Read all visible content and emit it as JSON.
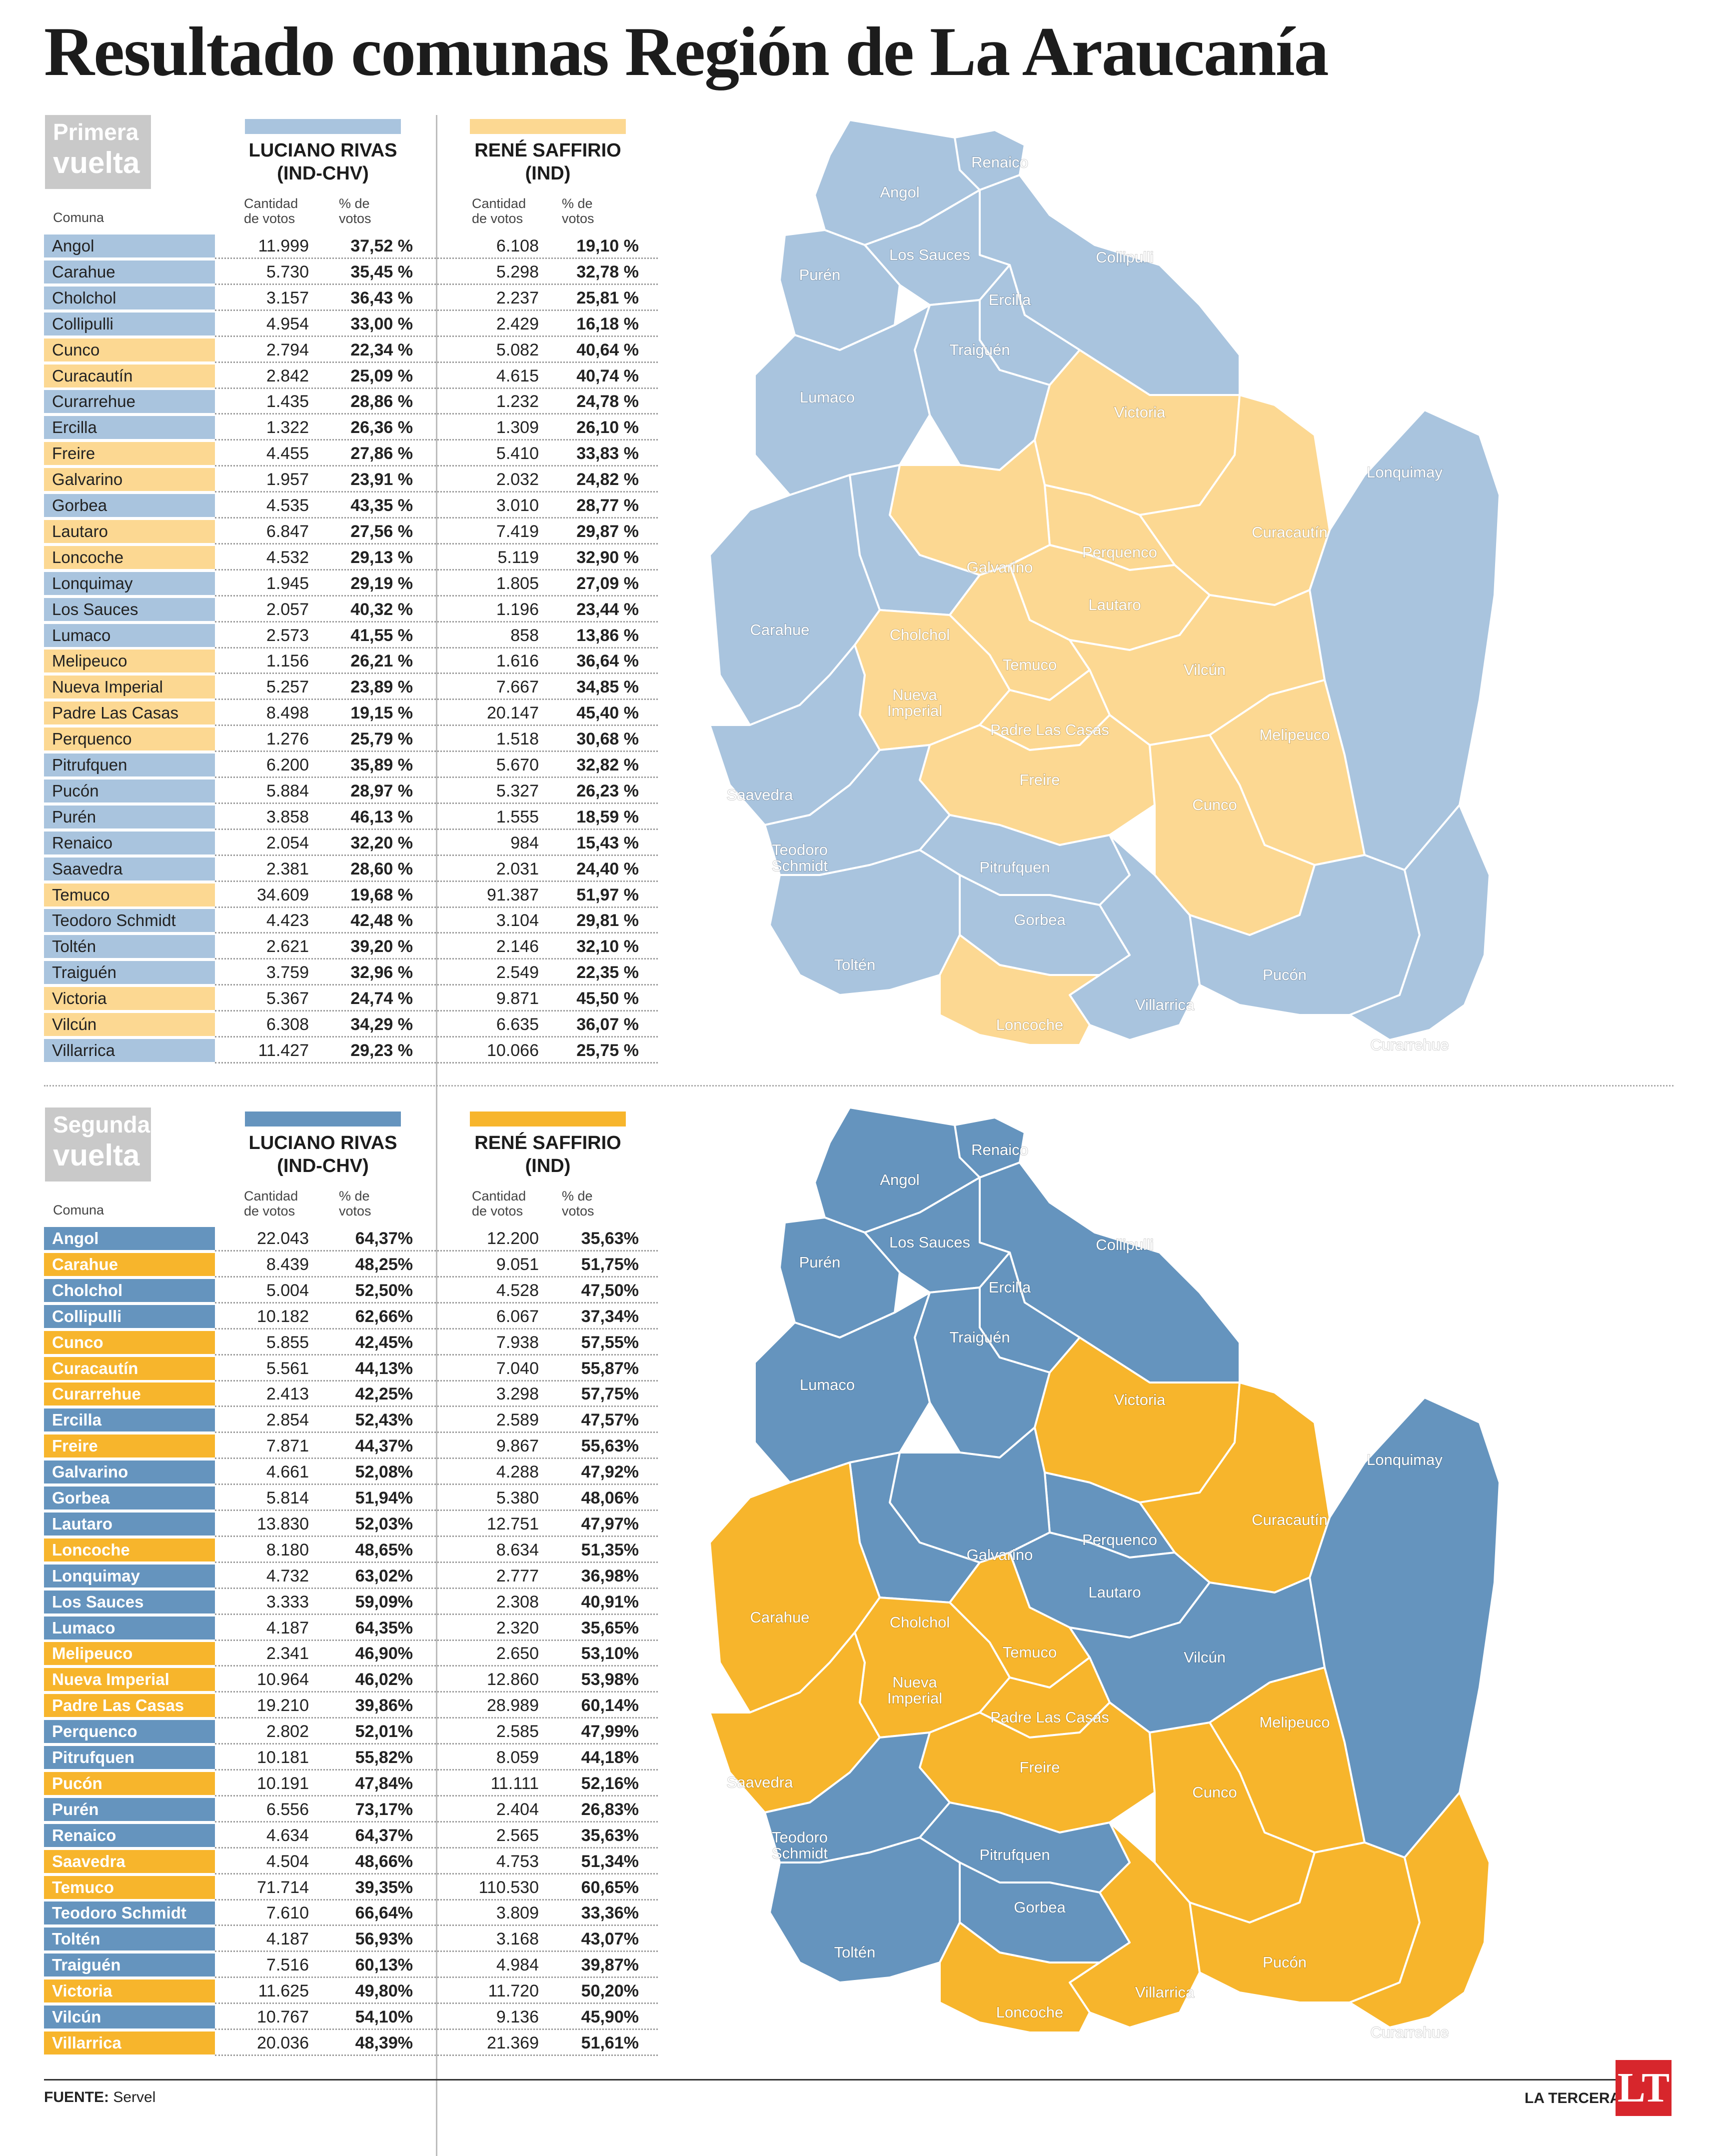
{
  "title": "Resultado comunas Región de La Araucanía",
  "colors": {
    "rivas_r1": "#a9c4de",
    "saffirio_r1": "#fcd892",
    "rivas_r2": "#6594be",
    "saffirio_r2": "#f7b52c",
    "border": "#ffffff",
    "label_gray": "#c9c9c9"
  },
  "footer": {
    "source_label": "FUENTE:",
    "source_value": "Servel",
    "brand": "LA TERCERA",
    "logo": "LT"
  },
  "rounds": [
    {
      "label_line1": "Primera",
      "label_line2": "vuelta",
      "candidates": [
        {
          "name": "LUCIANO RIVAS",
          "party": "(IND-CHV)"
        },
        {
          "name": "RENÉ SAFFIRIO",
          "party": "(IND)"
        }
      ],
      "headers": {
        "comuna": "Comuna",
        "cantidad_1": "Cantidad",
        "cantidad_2": "de votos",
        "pct_1": "% de",
        "pct_2": "votos"
      },
      "rows": [
        {
          "comuna": "Angol",
          "r_votes": "11.999",
          "r_pct": "37,52 %",
          "s_votes": "6.108",
          "s_pct": "19,10 %",
          "winner": "rivas"
        },
        {
          "comuna": "Carahue",
          "r_votes": "5.730",
          "r_pct": "35,45 %",
          "s_votes": "5.298",
          "s_pct": "32,78 %",
          "winner": "rivas"
        },
        {
          "comuna": "Cholchol",
          "r_votes": "3.157",
          "r_pct": "36,43 %",
          "s_votes": "2.237",
          "s_pct": "25,81 %",
          "winner": "rivas"
        },
        {
          "comuna": "Collipulli",
          "r_votes": "4.954",
          "r_pct": "33,00 %",
          "s_votes": "2.429",
          "s_pct": "16,18 %",
          "winner": "rivas"
        },
        {
          "comuna": "Cunco",
          "r_votes": "2.794",
          "r_pct": "22,34 %",
          "s_votes": "5.082",
          "s_pct": "40,64 %",
          "winner": "saffirio"
        },
        {
          "comuna": "Curacautín",
          "r_votes": "2.842",
          "r_pct": "25,09 %",
          "s_votes": "4.615",
          "s_pct": "40,74 %",
          "winner": "saffirio"
        },
        {
          "comuna": "Curarrehue",
          "r_votes": "1.435",
          "r_pct": "28,86 %",
          "s_votes": "1.232",
          "s_pct": "24,78 %",
          "winner": "rivas"
        },
        {
          "comuna": "Ercilla",
          "r_votes": "1.322",
          "r_pct": "26,36 %",
          "s_votes": "1.309",
          "s_pct": "26,10 %",
          "winner": "rivas"
        },
        {
          "comuna": "Freire",
          "r_votes": "4.455",
          "r_pct": "27,86 %",
          "s_votes": "5.410",
          "s_pct": "33,83 %",
          "winner": "saffirio"
        },
        {
          "comuna": "Galvarino",
          "r_votes": "1.957",
          "r_pct": "23,91 %",
          "s_votes": "2.032",
          "s_pct": "24,82 %",
          "winner": "saffirio"
        },
        {
          "comuna": "Gorbea",
          "r_votes": "4.535",
          "r_pct": "43,35 %",
          "s_votes": "3.010",
          "s_pct": "28,77 %",
          "winner": "rivas"
        },
        {
          "comuna": "Lautaro",
          "r_votes": "6.847",
          "r_pct": "27,56 %",
          "s_votes": "7.419",
          "s_pct": "29,87 %",
          "winner": "saffirio"
        },
        {
          "comuna": "Loncoche",
          "r_votes": "4.532",
          "r_pct": "29,13 %",
          "s_votes": "5.119",
          "s_pct": "32,90 %",
          "winner": "saffirio"
        },
        {
          "comuna": "Lonquimay",
          "r_votes": "1.945",
          "r_pct": "29,19 %",
          "s_votes": "1.805",
          "s_pct": "27,09 %",
          "winner": "rivas"
        },
        {
          "comuna": "Los Sauces",
          "r_votes": "2.057",
          "r_pct": "40,32 %",
          "s_votes": "1.196",
          "s_pct": "23,44 %",
          "winner": "rivas"
        },
        {
          "comuna": "Lumaco",
          "r_votes": "2.573",
          "r_pct": "41,55 %",
          "s_votes": "858",
          "s_pct": "13,86 %",
          "winner": "rivas"
        },
        {
          "comuna": "Melipeuco",
          "r_votes": "1.156",
          "r_pct": "26,21 %",
          "s_votes": "1.616",
          "s_pct": "36,64 %",
          "winner": "saffirio"
        },
        {
          "comuna": "Nueva Imperial",
          "r_votes": "5.257",
          "r_pct": "23,89 %",
          "s_votes": "7.667",
          "s_pct": "34,85 %",
          "winner": "saffirio"
        },
        {
          "comuna": "Padre Las Casas",
          "r_votes": "8.498",
          "r_pct": "19,15 %",
          "s_votes": "20.147",
          "s_pct": "45,40 %",
          "winner": "saffirio"
        },
        {
          "comuna": "Perquenco",
          "r_votes": "1.276",
          "r_pct": "25,79 %",
          "s_votes": "1.518",
          "s_pct": "30,68 %",
          "winner": "saffirio"
        },
        {
          "comuna": "Pitrufquen",
          "r_votes": "6.200",
          "r_pct": "35,89 %",
          "s_votes": "5.670",
          "s_pct": "32,82 %",
          "winner": "rivas"
        },
        {
          "comuna": "Pucón",
          "r_votes": "5.884",
          "r_pct": "28,97 %",
          "s_votes": "5.327",
          "s_pct": "26,23 %",
          "winner": "rivas"
        },
        {
          "comuna": "Purén",
          "r_votes": "3.858",
          "r_pct": "46,13 %",
          "s_votes": "1.555",
          "s_pct": "18,59 %",
          "winner": "rivas"
        },
        {
          "comuna": "Renaico",
          "r_votes": "2.054",
          "r_pct": "32,20 %",
          "s_votes": "984",
          "s_pct": "15,43 %",
          "winner": "rivas"
        },
        {
          "comuna": "Saavedra",
          "r_votes": "2.381",
          "r_pct": "28,60 %",
          "s_votes": "2.031",
          "s_pct": "24,40 %",
          "winner": "rivas"
        },
        {
          "comuna": "Temuco",
          "r_votes": "34.609",
          "r_pct": "19,68 %",
          "s_votes": "91.387",
          "s_pct": "51,97 %",
          "winner": "saffirio"
        },
        {
          "comuna": "Teodoro Schmidt",
          "r_votes": "4.423",
          "r_pct": "42,48 %",
          "s_votes": "3.104",
          "s_pct": "29,81 %",
          "winner": "rivas"
        },
        {
          "comuna": "Toltén",
          "r_votes": "2.621",
          "r_pct": "39,20 %",
          "s_votes": "2.146",
          "s_pct": "32,10 %",
          "winner": "rivas"
        },
        {
          "comuna": "Traiguén",
          "r_votes": "3.759",
          "r_pct": "32,96 %",
          "s_votes": "2.549",
          "s_pct": "22,35 %",
          "winner": "rivas"
        },
        {
          "comuna": "Victoria",
          "r_votes": "5.367",
          "r_pct": "24,74 %",
          "s_votes": "9.871",
          "s_pct": "45,50 %",
          "winner": "saffirio"
        },
        {
          "comuna": "Vilcún",
          "r_votes": "6.308",
          "r_pct": "34,29 %",
          "s_votes": "6.635",
          "s_pct": "36,07 %",
          "winner": "saffirio"
        },
        {
          "comuna": "Villarrica",
          "r_votes": "11.427",
          "r_pct": "29,23 %",
          "s_votes": "10.066",
          "s_pct": "25,75 %",
          "winner": "rivas"
        }
      ]
    },
    {
      "label_line1": "Segunda",
      "label_line2": "vuelta",
      "candidates": [
        {
          "name": "LUCIANO RIVAS",
          "party": "(IND-CHV)"
        },
        {
          "name": "RENÉ SAFFIRIO",
          "party": "(IND)"
        }
      ],
      "headers": {
        "comuna": "Comuna",
        "cantidad_1": "Cantidad",
        "cantidad_2": "de votos",
        "pct_1": "% de",
        "pct_2": "votos"
      },
      "rows": [
        {
          "comuna": "Angol",
          "r_votes": "22.043",
          "r_pct": "64,37%",
          "s_votes": "12.200",
          "s_pct": "35,63%",
          "winner": "rivas"
        },
        {
          "comuna": "Carahue",
          "r_votes": "8.439",
          "r_pct": "48,25%",
          "s_votes": "9.051",
          "s_pct": "51,75%",
          "winner": "saffirio"
        },
        {
          "comuna": "Cholchol",
          "r_votes": "5.004",
          "r_pct": "52,50%",
          "s_votes": "4.528",
          "s_pct": "47,50%",
          "winner": "rivas"
        },
        {
          "comuna": "Collipulli",
          "r_votes": "10.182",
          "r_pct": "62,66%",
          "s_votes": "6.067",
          "s_pct": "37,34%",
          "winner": "rivas"
        },
        {
          "comuna": "Cunco",
          "r_votes": "5.855",
          "r_pct": "42,45%",
          "s_votes": "7.938",
          "s_pct": "57,55%",
          "winner": "saffirio"
        },
        {
          "comuna": "Curacautín",
          "r_votes": "5.561",
          "r_pct": "44,13%",
          "s_votes": "7.040",
          "s_pct": "55,87%",
          "winner": "saffirio"
        },
        {
          "comuna": "Curarrehue",
          "r_votes": "2.413",
          "r_pct": "42,25%",
          "s_votes": "3.298",
          "s_pct": "57,75%",
          "winner": "saffirio"
        },
        {
          "comuna": "Ercilla",
          "r_votes": "2.854",
          "r_pct": "52,43%",
          "s_votes": "2.589",
          "s_pct": "47,57%",
          "winner": "rivas"
        },
        {
          "comuna": "Freire",
          "r_votes": "7.871",
          "r_pct": "44,37%",
          "s_votes": "9.867",
          "s_pct": "55,63%",
          "winner": "saffirio"
        },
        {
          "comuna": "Galvarino",
          "r_votes": "4.661",
          "r_pct": "52,08%",
          "s_votes": "4.288",
          "s_pct": "47,92%",
          "winner": "rivas"
        },
        {
          "comuna": "Gorbea",
          "r_votes": "5.814",
          "r_pct": "51,94%",
          "s_votes": "5.380",
          "s_pct": "48,06%",
          "winner": "rivas"
        },
        {
          "comuna": "Lautaro",
          "r_votes": "13.830",
          "r_pct": "52,03%",
          "s_votes": "12.751",
          "s_pct": "47,97%",
          "winner": "rivas"
        },
        {
          "comuna": "Loncoche",
          "r_votes": "8.180",
          "r_pct": "48,65%",
          "s_votes": "8.634",
          "s_pct": "51,35%",
          "winner": "saffirio"
        },
        {
          "comuna": "Lonquimay",
          "r_votes": "4.732",
          "r_pct": "63,02%",
          "s_votes": "2.777",
          "s_pct": "36,98%",
          "winner": "rivas"
        },
        {
          "comuna": "Los Sauces",
          "r_votes": "3.333",
          "r_pct": "59,09%",
          "s_votes": "2.308",
          "s_pct": "40,91%",
          "winner": "rivas"
        },
        {
          "comuna": "Lumaco",
          "r_votes": "4.187",
          "r_pct": "64,35%",
          "s_votes": "2.320",
          "s_pct": "35,65%",
          "winner": "rivas"
        },
        {
          "comuna": "Melipeuco",
          "r_votes": "2.341",
          "r_pct": "46,90%",
          "s_votes": "2.650",
          "s_pct": "53,10%",
          "winner": "saffirio"
        },
        {
          "comuna": "Nueva Imperial",
          "r_votes": "10.964",
          "r_pct": "46,02%",
          "s_votes": "12.860",
          "s_pct": "53,98%",
          "winner": "saffirio"
        },
        {
          "comuna": "Padre Las Casas",
          "r_votes": "19.210",
          "r_pct": "39,86%",
          "s_votes": "28.989",
          "s_pct": "60,14%",
          "winner": "saffirio"
        },
        {
          "comuna": "Perquenco",
          "r_votes": "2.802",
          "r_pct": "52,01%",
          "s_votes": "2.585",
          "s_pct": "47,99%",
          "winner": "rivas"
        },
        {
          "comuna": "Pitrufquen",
          "r_votes": "10.181",
          "r_pct": "55,82%",
          "s_votes": "8.059",
          "s_pct": "44,18%",
          "winner": "rivas"
        },
        {
          "comuna": "Pucón",
          "r_votes": "10.191",
          "r_pct": "47,84%",
          "s_votes": "11.111",
          "s_pct": "52,16%",
          "winner": "saffirio"
        },
        {
          "comuna": "Purén",
          "r_votes": "6.556",
          "r_pct": "73,17%",
          "s_votes": "2.404",
          "s_pct": "26,83%",
          "winner": "rivas"
        },
        {
          "comuna": "Renaico",
          "r_votes": "4.634",
          "r_pct": "64,37%",
          "s_votes": "2.565",
          "s_pct": "35,63%",
          "winner": "rivas"
        },
        {
          "comuna": "Saavedra",
          "r_votes": "4.504",
          "r_pct": "48,66%",
          "s_votes": "4.753",
          "s_pct": "51,34%",
          "winner": "saffirio"
        },
        {
          "comuna": "Temuco",
          "r_votes": "71.714",
          "r_pct": "39,35%",
          "s_votes": "110.530",
          "s_pct": "60,65%",
          "winner": "saffirio"
        },
        {
          "comuna": "Teodoro Schmidt",
          "r_votes": "7.610",
          "r_pct": "66,64%",
          "s_votes": "3.809",
          "s_pct": "33,36%",
          "winner": "rivas"
        },
        {
          "comuna": "Toltén",
          "r_votes": "4.187",
          "r_pct": "56,93%",
          "s_votes": "3.168",
          "s_pct": "43,07%",
          "winner": "rivas"
        },
        {
          "comuna": "Traiguén",
          "r_votes": "7.516",
          "r_pct": "60,13%",
          "s_votes": "4.984",
          "s_pct": "39,87%",
          "winner": "rivas"
        },
        {
          "comuna": "Victoria",
          "r_votes": "11.625",
          "r_pct": "49,80%",
          "s_votes": "11.720",
          "s_pct": "50,20%",
          "winner": "saffirio"
        },
        {
          "comuna": "Vilcún",
          "r_votes": "10.767",
          "r_pct": "54,10%",
          "s_votes": "9.136",
          "s_pct": "45,90%",
          "winner": "rivas"
        },
        {
          "comuna": "Villarrica",
          "r_votes": "20.036",
          "r_pct": "48,39%",
          "s_votes": "21.369",
          "s_pct": "51,61%",
          "winner": "saffirio"
        }
      ]
    }
  ],
  "map_regions": [
    {
      "id": "renaico",
      "label": "Renaico",
      "label_lines": [
        "Renaico"
      ]
    },
    {
      "id": "angol",
      "label": "Angol",
      "label_lines": [
        "Angol"
      ]
    },
    {
      "id": "collipulli",
      "label": "Collipulli",
      "label_lines": [
        "Collipulli"
      ]
    },
    {
      "id": "los_sauces",
      "label": "Los Sauces",
      "label_lines": [
        "Los Sauces"
      ]
    },
    {
      "id": "puren",
      "label": "Purén",
      "label_lines": [
        "Purén"
      ]
    },
    {
      "id": "ercilla",
      "label": "Ercilla",
      "label_lines": [
        "Ercilla"
      ]
    },
    {
      "id": "traiguen",
      "label": "Traiguén",
      "label_lines": [
        "Traiguén"
      ]
    },
    {
      "id": "lumaco",
      "label": "Lumaco",
      "label_lines": [
        "Lumaco"
      ]
    },
    {
      "id": "victoria",
      "label": "Victoria",
      "label_lines": [
        "Victoria"
      ]
    },
    {
      "id": "lonquimay",
      "label": "Lonquimay",
      "label_lines": [
        "Lonquimay"
      ]
    },
    {
      "id": "curacautin",
      "label": "Curacautín",
      "label_lines": [
        "Curacautín"
      ]
    },
    {
      "id": "perquenco",
      "label": "Perquenco",
      "label_lines": [
        "Perquenco"
      ]
    },
    {
      "id": "galvarino",
      "label": "Galvarino",
      "label_lines": [
        "Galvarino"
      ]
    },
    {
      "id": "lautaro",
      "label": "Lautaro",
      "label_lines": [
        "Lautaro"
      ]
    },
    {
      "id": "cholchol",
      "label": "Cholchol",
      "label_lines": [
        "Cholchol"
      ]
    },
    {
      "id": "carahue",
      "label": "Carahue",
      "label_lines": [
        "Carahue"
      ]
    },
    {
      "id": "temuco",
      "label": "Temuco",
      "label_lines": [
        "Temuco"
      ]
    },
    {
      "id": "vilcun",
      "label": "Vilcún",
      "label_lines": [
        "Vilcún"
      ]
    },
    {
      "id": "nueva_imperial",
      "label": "Nueva Imperial",
      "label_lines": [
        "Nueva",
        "Imperial"
      ]
    },
    {
      "id": "padre_las_casas",
      "label": "Padre Las Casas",
      "label_lines": [
        "Padre Las Casas"
      ]
    },
    {
      "id": "melipeuco",
      "label": "Melipeuco",
      "label_lines": [
        "Melipeuco"
      ]
    },
    {
      "id": "saavedra",
      "label": "Saavedra",
      "label_lines": [
        "Saavedra"
      ]
    },
    {
      "id": "freire",
      "label": "Freire",
      "label_lines": [
        "Freire"
      ]
    },
    {
      "id": "cunco",
      "label": "Cunco",
      "label_lines": [
        "Cunco"
      ]
    },
    {
      "id": "teodoro_schmidt",
      "label": "Teodoro Schmidt",
      "label_lines": [
        "Teodoro",
        "Schmidt"
      ]
    },
    {
      "id": "pitrufquen",
      "label": "Pitrufquen",
      "label_lines": [
        "Pitrufquen"
      ]
    },
    {
      "id": "gorbea",
      "label": "Gorbea",
      "label_lines": [
        "Gorbea"
      ]
    },
    {
      "id": "tolten",
      "label": "Toltén",
      "label_lines": [
        "Toltén"
      ]
    },
    {
      "id": "pucon",
      "label": "Pucón",
      "label_lines": [
        "Pucón"
      ]
    },
    {
      "id": "villarrica",
      "label": "Villarrica",
      "label_lines": [
        "Villarrica"
      ]
    },
    {
      "id": "loncoche",
      "label": "Loncoche",
      "label_lines": [
        "Loncoche"
      ]
    },
    {
      "id": "curarrehue",
      "label": "Curarrehue",
      "label_lines": [
        "Curarrehue"
      ]
    }
  ]
}
